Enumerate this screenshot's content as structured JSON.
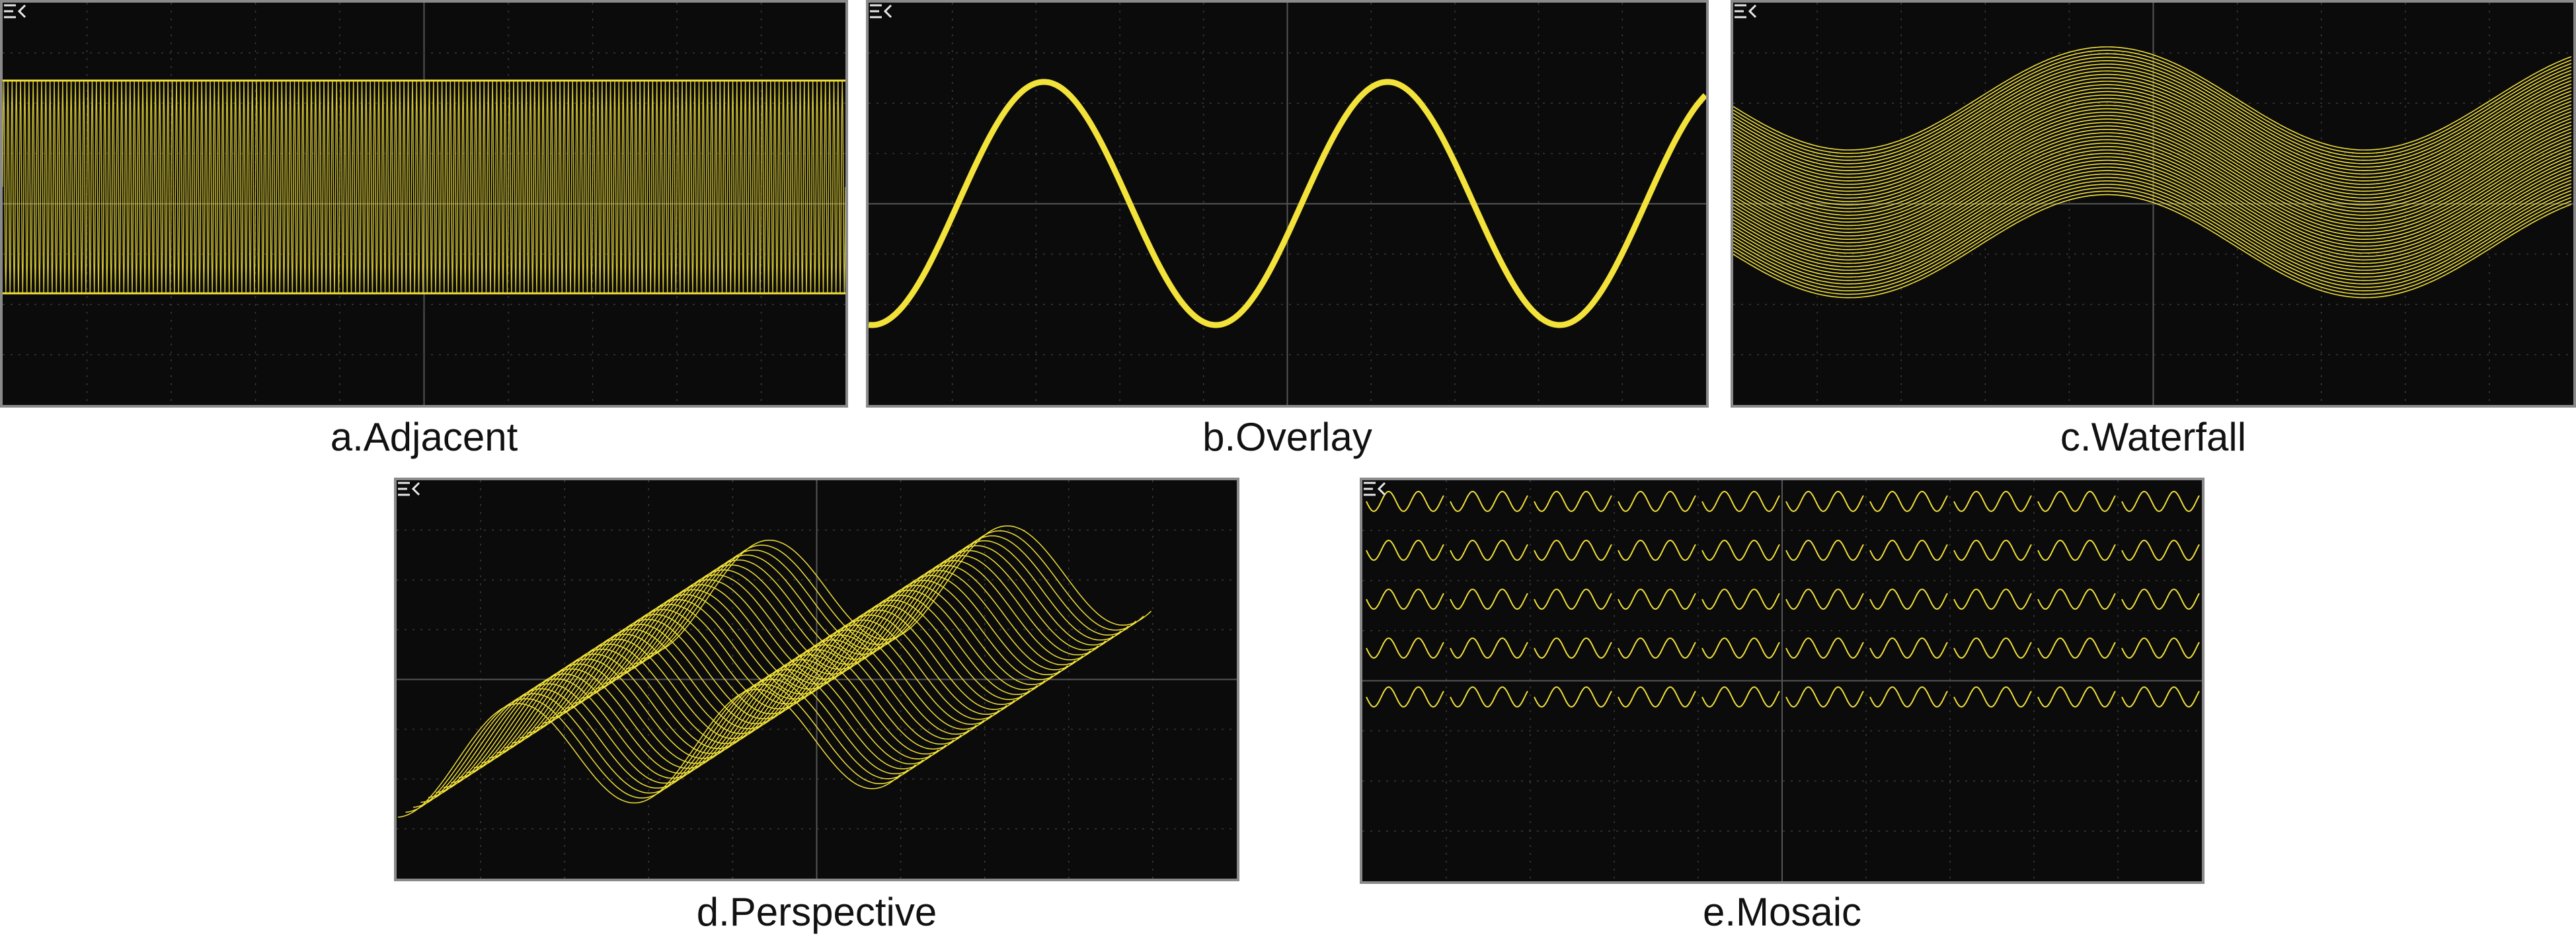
{
  "colors": {
    "trace": "#f3e23a",
    "screen": "#0b0b0b",
    "grid": "#3a3a3a",
    "icon": "#e8e8e8"
  },
  "panels": [
    {
      "id": "a",
      "caption": "a.Adjacent",
      "mode": "adjacent",
      "icon": "expand-menu-icon"
    },
    {
      "id": "b",
      "caption": "b.Overlay",
      "mode": "overlay",
      "icon": "expand-menu-icon"
    },
    {
      "id": "c",
      "caption": "c.Waterfall",
      "mode": "waterfall",
      "icon": "expand-menu-icon"
    },
    {
      "id": "d",
      "caption": "d.Perspective",
      "mode": "perspective",
      "icon": "expand-menu-icon"
    },
    {
      "id": "e",
      "caption": "e.Mosaic",
      "mode": "mosaic",
      "icon": "expand-menu-icon"
    }
  ]
}
